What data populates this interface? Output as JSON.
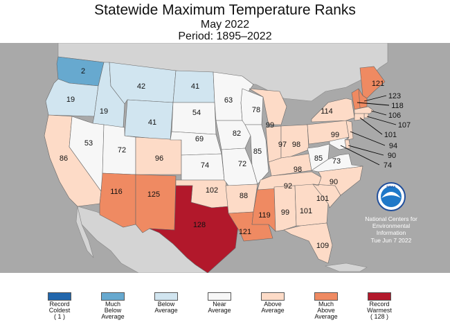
{
  "title": "Statewide Maximum Temperature Ranks",
  "subtitle": "May 2022",
  "period": "Period: 1895–2022",
  "colors": {
    "ocean": "#a9a9a9",
    "land": "#d4d4d4",
    "border": "#666666",
    "record_coldest": "#2166ac",
    "much_below": "#67a9cf",
    "below": "#d1e5f0",
    "near": "#f7f7f7",
    "above": "#fddbc7",
    "much_above": "#ef8a62",
    "record_warmest": "#b2182b"
  },
  "legend": [
    {
      "label": "Record\nColdest\n( 1 )",
      "color": "#2166ac"
    },
    {
      "label": "Much\nBelow\nAverage",
      "color": "#67a9cf"
    },
    {
      "label": "Below\nAverage",
      "color": "#d1e5f0"
    },
    {
      "label": "Near\nAverage",
      "color": "#f7f7f7"
    },
    {
      "label": "Above\nAverage",
      "color": "#fddbc7"
    },
    {
      "label": "Much\nAbove\nAverage",
      "color": "#ef8a62"
    },
    {
      "label": "Record\nWarmest\n( 128 )",
      "color": "#b2182b"
    }
  ],
  "states": [
    {
      "name": "WA",
      "rank": "2",
      "category": "much_below"
    },
    {
      "name": "OR",
      "rank": "19",
      "category": "below"
    },
    {
      "name": "ID",
      "rank": "19",
      "category": "below"
    },
    {
      "name": "MT",
      "rank": "42",
      "category": "below"
    },
    {
      "name": "WY",
      "rank": "41",
      "category": "below"
    },
    {
      "name": "ND",
      "rank": "41",
      "category": "below"
    },
    {
      "name": "CA",
      "rank": "86",
      "category": "above"
    },
    {
      "name": "NV",
      "rank": "53",
      "category": "near"
    },
    {
      "name": "UT",
      "rank": "72",
      "category": "near"
    },
    {
      "name": "CO",
      "rank": "96",
      "category": "above"
    },
    {
      "name": "AZ",
      "rank": "116",
      "category": "much_above"
    },
    {
      "name": "NM",
      "rank": "125",
      "category": "much_above"
    },
    {
      "name": "SD",
      "rank": "54",
      "category": "near"
    },
    {
      "name": "NE",
      "rank": "69",
      "category": "near"
    },
    {
      "name": "KS",
      "rank": "74",
      "category": "near"
    },
    {
      "name": "OK",
      "rank": "102",
      "category": "above"
    },
    {
      "name": "TX",
      "rank": "128",
      "category": "record_warmest"
    },
    {
      "name": "MN",
      "rank": "63",
      "category": "near"
    },
    {
      "name": "IA",
      "rank": "82",
      "category": "near"
    },
    {
      "name": "MO",
      "rank": "72",
      "category": "near"
    },
    {
      "name": "AR",
      "rank": "88",
      "category": "above"
    },
    {
      "name": "LA",
      "rank": "121",
      "category": "much_above"
    },
    {
      "name": "WI",
      "rank": "78",
      "category": "near"
    },
    {
      "name": "IL",
      "rank": "85",
      "category": "near"
    },
    {
      "name": "MS",
      "rank": "119",
      "category": "much_above"
    },
    {
      "name": "MI",
      "rank": "99",
      "category": "above"
    },
    {
      "name": "IN",
      "rank": "97",
      "category": "above"
    },
    {
      "name": "OH",
      "rank": "98",
      "category": "above"
    },
    {
      "name": "KY",
      "rank": "98",
      "category": "above"
    },
    {
      "name": "TN",
      "rank": "92",
      "category": "above"
    },
    {
      "name": "AL",
      "rank": "99",
      "category": "above"
    },
    {
      "name": "GA",
      "rank": "101",
      "category": "above"
    },
    {
      "name": "FL",
      "rank": "109",
      "category": "above"
    },
    {
      "name": "SC",
      "rank": "101",
      "category": "above"
    },
    {
      "name": "NC",
      "rank": "90",
      "category": "above"
    },
    {
      "name": "VA",
      "rank": "73",
      "category": "near"
    },
    {
      "name": "WV",
      "rank": "85",
      "category": "near"
    },
    {
      "name": "PA",
      "rank": "99",
      "category": "above"
    },
    {
      "name": "NY",
      "rank": "114",
      "category": "above"
    },
    {
      "name": "ME",
      "rank": "121",
      "category": "much_above"
    },
    {
      "name": "NH",
      "rank": "123",
      "category": "much_above"
    },
    {
      "name": "VT",
      "rank": "118",
      "category": "much_above"
    },
    {
      "name": "MA",
      "rank": "106",
      "category": "above"
    },
    {
      "name": "RI",
      "rank": "107",
      "category": "above"
    },
    {
      "name": "CT",
      "rank": "101",
      "category": "above"
    },
    {
      "name": "NJ",
      "rank": "94",
      "category": "above"
    },
    {
      "name": "DE",
      "rank": "90",
      "category": "above"
    },
    {
      "name": "MD",
      "rank": "74",
      "category": "near"
    }
  ],
  "noaa_logo_text": "NOAA",
  "credit": {
    "line1": "National Centers for",
    "line2": "Environmental",
    "line3": "Information",
    "line4": "Tue Jun  7 2022"
  }
}
